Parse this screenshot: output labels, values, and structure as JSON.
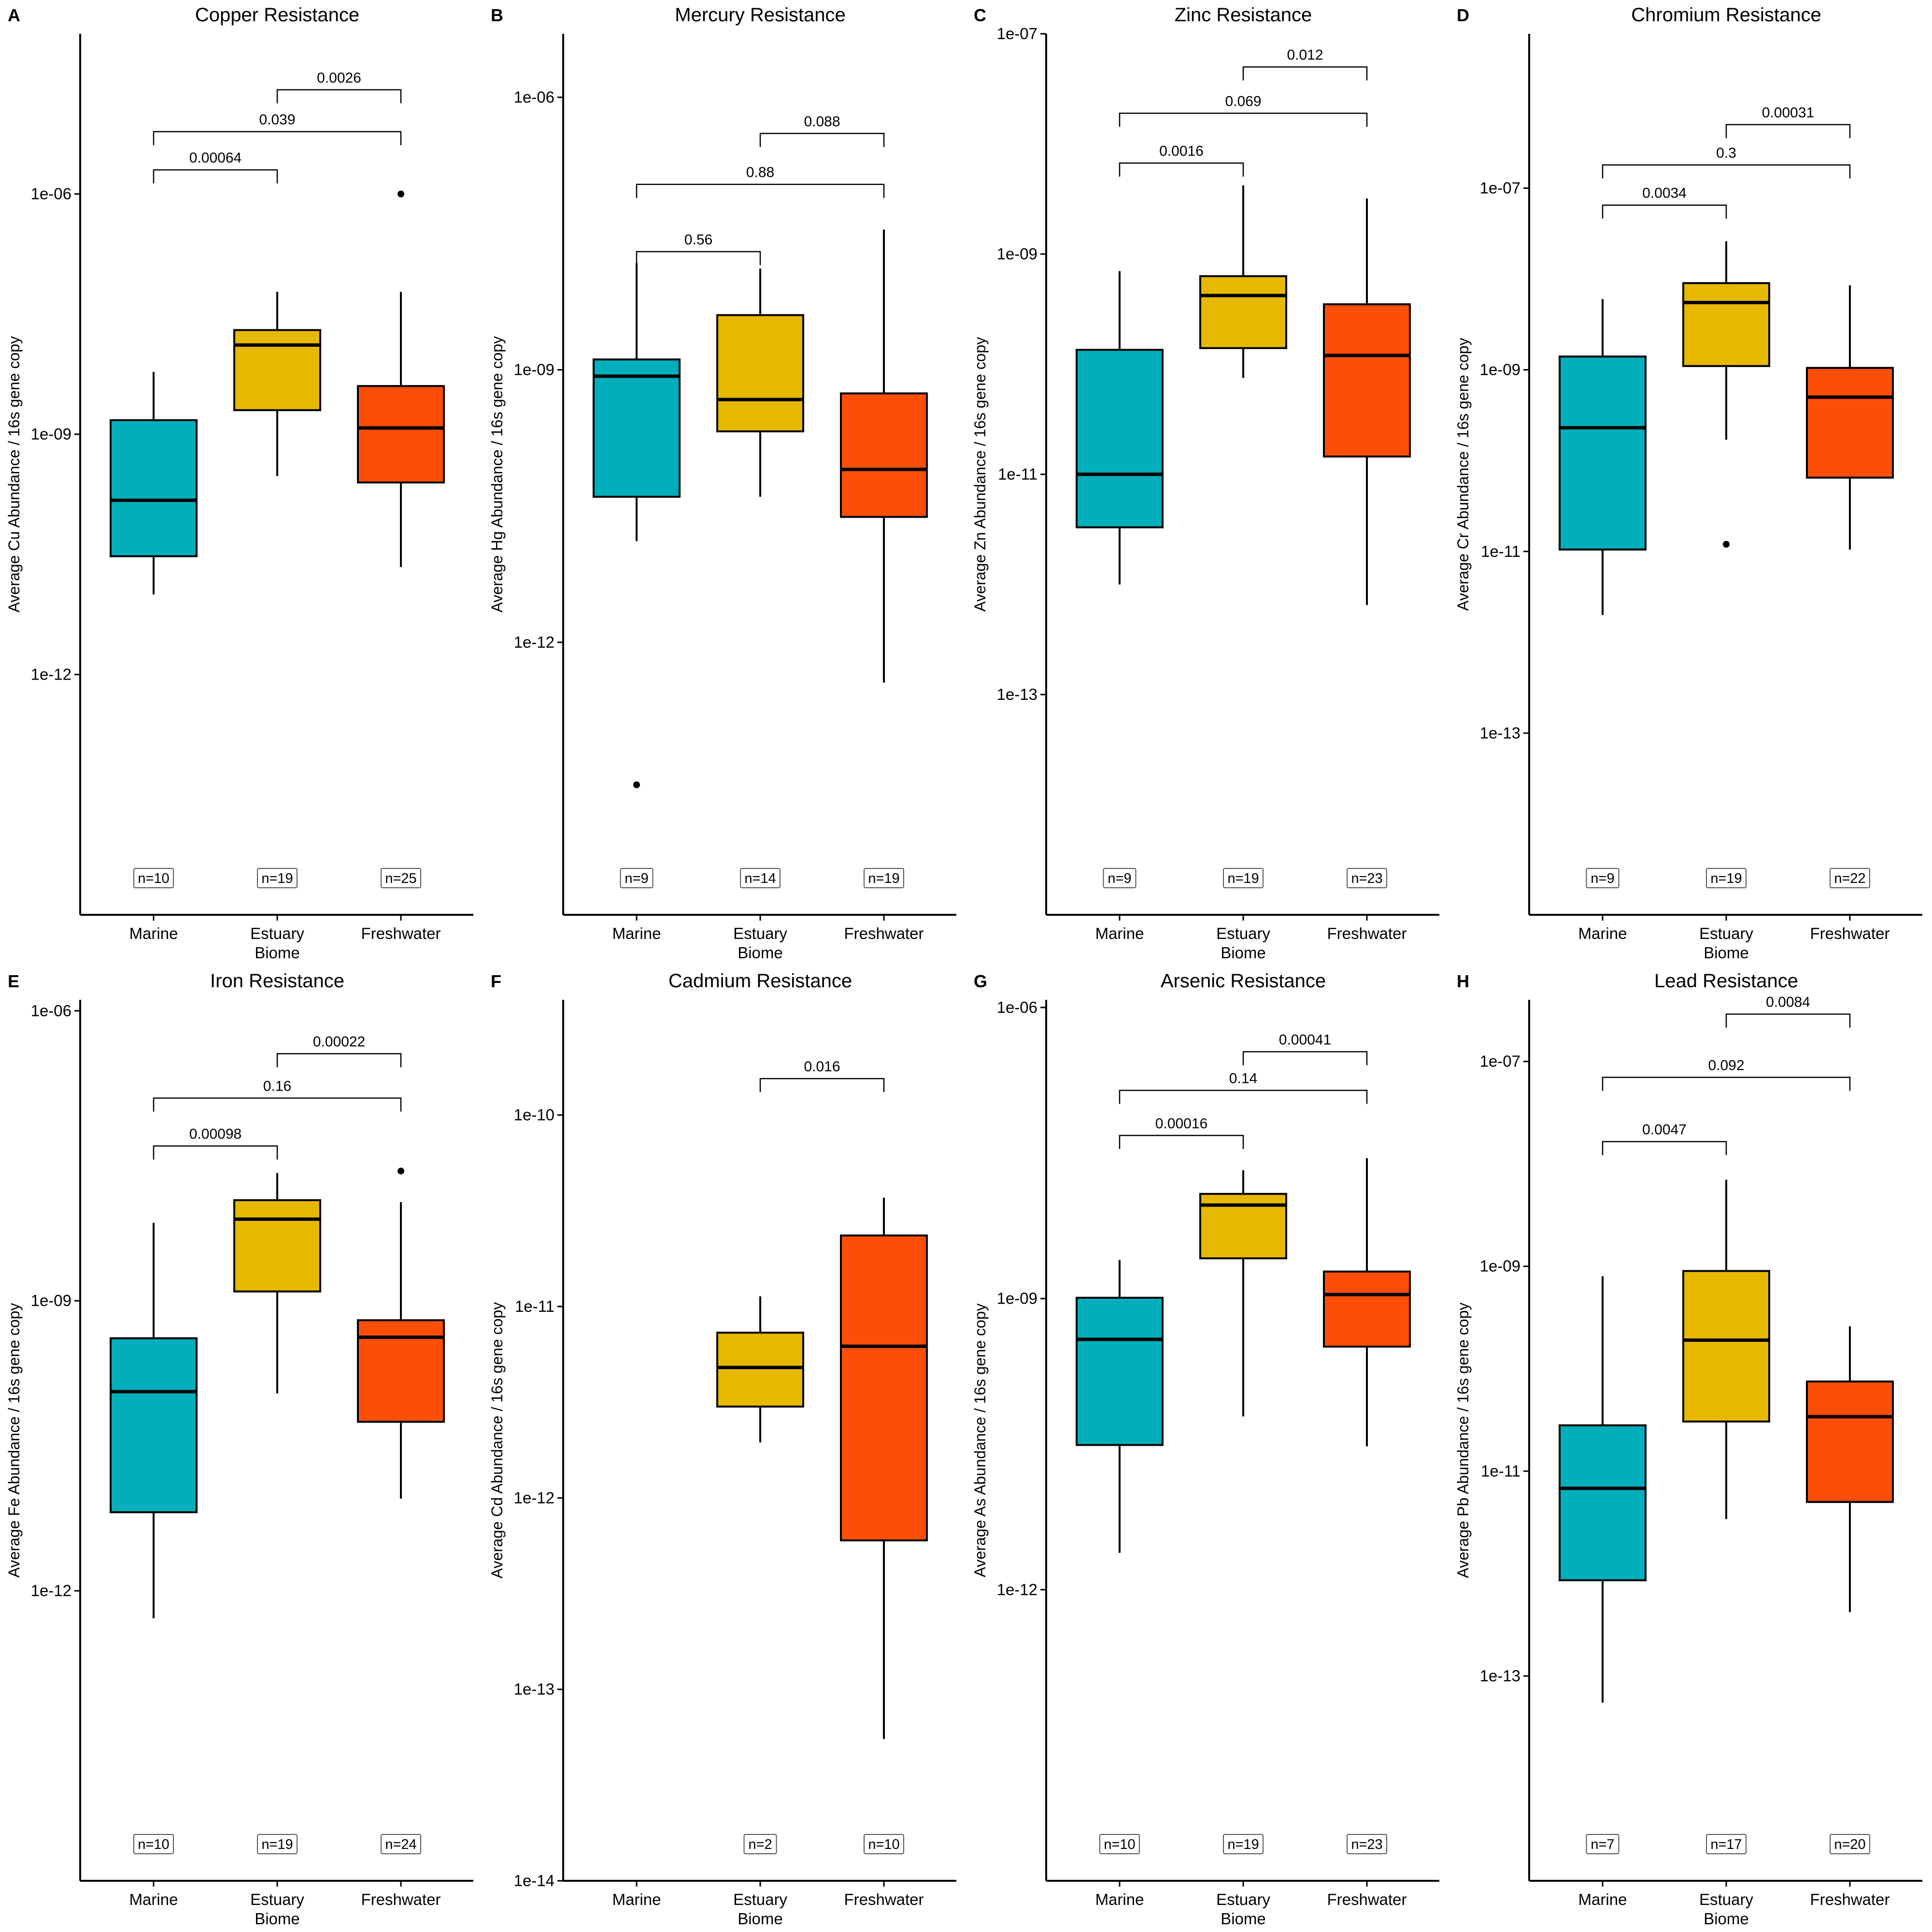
{
  "chart_data": [
    {
      "type": "box",
      "letter": "A",
      "title": "Copper Resistance",
      "ylabel": "Average Cu Abundance / 16s gene copy",
      "xlabel": "Biome",
      "yscale": "log10",
      "ylim": [
        1e-15,
        0.0001
      ],
      "yticks": [
        {
          "v": 1e-06,
          "label": "1e-06"
        },
        {
          "v": 1e-09,
          "label": "1e-09"
        },
        {
          "v": 1e-12,
          "label": "1e-12"
        }
      ],
      "categories": [
        "Marine",
        "Estuary",
        "Freshwater"
      ],
      "boxes": [
        {
          "name": "Marine",
          "min": 1e-11,
          "q1": 3e-11,
          "median": 1.5e-10,
          "q3": 1.5e-09,
          "max": 6e-09,
          "outliers": [],
          "n": "n=10"
        },
        {
          "name": "Estuary",
          "min": 3e-10,
          "q1": 2e-09,
          "median": 1.3e-08,
          "q3": 2e-08,
          "max": 6e-08,
          "outliers": [],
          "n": "n=19"
        },
        {
          "name": "Freshwater",
          "min": 2.2e-11,
          "q1": 2.5e-10,
          "median": 1.2e-09,
          "q3": 4e-09,
          "max": 6e-08,
          "outliers": [
            1e-06
          ],
          "n": "n=25"
        }
      ],
      "comparisons": [
        {
          "from": 1,
          "to": 2,
          "y": 2e-05,
          "label": "0.0026"
        },
        {
          "from": 0,
          "to": 2,
          "y": 6e-06,
          "label": "0.039"
        },
        {
          "from": 0,
          "to": 1,
          "y": 2e-06,
          "label": "0.00064"
        }
      ]
    },
    {
      "type": "box",
      "letter": "B",
      "title": "Mercury Resistance",
      "ylabel": "Average Hg Abundance / 16s gene copy",
      "xlabel": "Biome",
      "yscale": "log10",
      "ylim": [
        1e-15,
        5e-06
      ],
      "yticks": [
        {
          "v": 1e-06,
          "label": "1e-06"
        },
        {
          "v": 1e-09,
          "label": "1e-09"
        },
        {
          "v": 1e-12,
          "label": "1e-12"
        }
      ],
      "categories": [
        "Marine",
        "Estuary",
        "Freshwater"
      ],
      "boxes": [
        {
          "name": "Marine",
          "min": 1.3e-11,
          "q1": 4e-11,
          "median": 8.5e-10,
          "q3": 1.3e-09,
          "max": 1.5e-08,
          "outliers": [
            2.7e-14
          ],
          "n": "n=9"
        },
        {
          "name": "Estuary",
          "min": 4e-11,
          "q1": 2.1e-10,
          "median": 4.7e-10,
          "q3": 4e-09,
          "max": 1.3e-08,
          "outliers": [],
          "n": "n=14"
        },
        {
          "name": "Freshwater",
          "min": 3.6e-13,
          "q1": 2.4e-11,
          "median": 8e-11,
          "q3": 5.5e-10,
          "max": 3.5e-08,
          "outliers": [],
          "n": "n=19"
        }
      ],
      "comparisons": [
        {
          "from": 1,
          "to": 2,
          "y": 4e-07,
          "label": "0.088"
        },
        {
          "from": 0,
          "to": 2,
          "y": 1.1e-07,
          "label": "0.88"
        },
        {
          "from": 0,
          "to": 1,
          "y": 2e-08,
          "label": "0.56"
        }
      ]
    },
    {
      "type": "box",
      "letter": "C",
      "title": "Zinc Resistance",
      "ylabel": "Average Zn Abundance / 16s gene copy",
      "xlabel": "Biome",
      "yscale": "log10",
      "ylim": [
        1e-15,
        1e-07
      ],
      "yticks": [
        {
          "v": 1e-07,
          "label": "1e-07"
        },
        {
          "v": 1e-09,
          "label": "1e-09"
        },
        {
          "v": 1e-11,
          "label": "1e-11"
        },
        {
          "v": 1e-13,
          "label": "1e-13"
        }
      ],
      "categories": [
        "Marine",
        "Estuary",
        "Freshwater"
      ],
      "boxes": [
        {
          "name": "Marine",
          "min": 1e-12,
          "q1": 3.3e-12,
          "median": 1e-11,
          "q3": 1.35e-10,
          "max": 7e-10,
          "outliers": [],
          "n": "n=9"
        },
        {
          "name": "Estuary",
          "min": 7.5e-11,
          "q1": 1.4e-10,
          "median": 4.2e-10,
          "q3": 6.3e-10,
          "max": 4.2e-09,
          "outliers": [],
          "n": "n=19"
        },
        {
          "name": "Freshwater",
          "min": 6.5e-13,
          "q1": 1.45e-11,
          "median": 1.2e-10,
          "q3": 3.5e-10,
          "max": 3.2e-09,
          "outliers": [],
          "n": "n=23"
        }
      ],
      "comparisons": [
        {
          "from": 1,
          "to": 2,
          "y": 5e-08,
          "label": "0.012"
        },
        {
          "from": 0,
          "to": 2,
          "y": 1.9e-08,
          "label": "0.069"
        },
        {
          "from": 0,
          "to": 1,
          "y": 6.7e-09,
          "label": "0.0016"
        }
      ]
    },
    {
      "type": "box",
      "letter": "D",
      "title": "Chromium Resistance",
      "ylabel": "Average Cr Abundance / 16s gene copy",
      "xlabel": "Biome",
      "yscale": "log10",
      "ylim": [
        1e-15,
        5e-06
      ],
      "yticks": [
        {
          "v": 1e-07,
          "label": "1e-07"
        },
        {
          "v": 1e-09,
          "label": "1e-09"
        },
        {
          "v": 1e-11,
          "label": "1e-11"
        },
        {
          "v": 1e-13,
          "label": "1e-13"
        }
      ],
      "categories": [
        "Marine",
        "Estuary",
        "Freshwater"
      ],
      "boxes": [
        {
          "name": "Marine",
          "min": 2e-12,
          "q1": 1.05e-11,
          "median": 2.3e-10,
          "q3": 1.4e-09,
          "max": 6e-09,
          "outliers": [],
          "n": "n=9"
        },
        {
          "name": "Estuary",
          "min": 1.7e-10,
          "q1": 1.1e-09,
          "median": 5.5e-09,
          "q3": 9e-09,
          "max": 2.6e-08,
          "outliers": [
            1.2e-11
          ],
          "n": "n=19"
        },
        {
          "name": "Freshwater",
          "min": 1.05e-11,
          "q1": 6.5e-11,
          "median": 5e-10,
          "q3": 1.05e-09,
          "max": 8.5e-09,
          "outliers": [],
          "n": "n=22"
        }
      ],
      "comparisons": [
        {
          "from": 1,
          "to": 2,
          "y": 5e-07,
          "label": "0.00031"
        },
        {
          "from": 0,
          "to": 2,
          "y": 1.8e-07,
          "label": "0.3"
        },
        {
          "from": 0,
          "to": 1,
          "y": 6.5e-08,
          "label": "0.0034"
        }
      ]
    },
    {
      "type": "box",
      "letter": "E",
      "title": "Iron Resistance",
      "ylabel": "Average Fe Abundance / 16s gene copy",
      "xlabel": "Biome",
      "yscale": "log10",
      "ylim": [
        1e-15,
        1.3e-06
      ],
      "yticks": [
        {
          "v": 1e-06,
          "label": "1e-06"
        },
        {
          "v": 1e-09,
          "label": "1e-09"
        },
        {
          "v": 1e-12,
          "label": "1e-12"
        }
      ],
      "categories": [
        "Marine",
        "Estuary",
        "Freshwater"
      ],
      "boxes": [
        {
          "name": "Marine",
          "min": 5.2e-13,
          "q1": 6.5e-12,
          "median": 1.15e-10,
          "q3": 4.1e-10,
          "max": 6.4e-09,
          "outliers": [],
          "n": "n=10"
        },
        {
          "name": "Estuary",
          "min": 1.1e-10,
          "q1": 1.25e-09,
          "median": 7e-09,
          "q3": 1.1e-08,
          "max": 2.1e-08,
          "outliers": [],
          "n": "n=19"
        },
        {
          "name": "Freshwater",
          "min": 9e-12,
          "q1": 5.6e-11,
          "median": 4.2e-10,
          "q3": 6.3e-10,
          "max": 1.05e-08,
          "outliers": [
            2.2e-08
          ],
          "n": "n=24"
        }
      ],
      "comparisons": [
        {
          "from": 1,
          "to": 2,
          "y": 3.6e-07,
          "label": "0.00022"
        },
        {
          "from": 0,
          "to": 2,
          "y": 1.25e-07,
          "label": "0.16"
        },
        {
          "from": 0,
          "to": 1,
          "y": 4e-08,
          "label": "0.00098"
        }
      ]
    },
    {
      "type": "box",
      "letter": "F",
      "title": "Cadmium Resistance",
      "ylabel": "Average Cd Abundance / 16s gene copy",
      "xlabel": "Biome",
      "yscale": "log10",
      "ylim": [
        1e-14,
        4e-10
      ],
      "yticks": [
        {
          "v": 1e-10,
          "label": "1e-10"
        },
        {
          "v": 1e-11,
          "label": "1e-11"
        },
        {
          "v": 1e-12,
          "label": "1e-12"
        },
        {
          "v": 1e-13,
          "label": "1e-13"
        },
        {
          "v": 1e-14,
          "label": "1e-14"
        }
      ],
      "categories": [
        "Marine",
        "Estuary",
        "Freshwater"
      ],
      "boxes": [
        {
          "name": "Marine",
          "empty": true,
          "n": ""
        },
        {
          "name": "Estuary",
          "min": 1.95e-12,
          "q1": 3e-12,
          "median": 4.8e-12,
          "q3": 7.3e-12,
          "max": 1.13e-11,
          "outliers": [],
          "n": "n=2"
        },
        {
          "name": "Freshwater",
          "min": 5.5e-14,
          "q1": 6e-13,
          "median": 6.2e-12,
          "q3": 2.35e-11,
          "max": 3.7e-11,
          "outliers": [],
          "n": "n=10"
        }
      ],
      "comparisons": [
        {
          "from": 1,
          "to": 2,
          "y": 1.55e-10,
          "label": "0.016"
        }
      ]
    },
    {
      "type": "box",
      "letter": "G",
      "title": "Arsenic Resistance",
      "ylabel": "Average As Abundance / 16s gene copy",
      "xlabel": "Biome",
      "yscale": "log10",
      "ylim": [
        1e-15,
        1.2e-06
      ],
      "yticks": [
        {
          "v": 1e-06,
          "label": "1e-06"
        },
        {
          "v": 1e-09,
          "label": "1e-09"
        },
        {
          "v": 1e-12,
          "label": "1e-12"
        }
      ],
      "categories": [
        "Marine",
        "Estuary",
        "Freshwater"
      ],
      "boxes": [
        {
          "name": "Marine",
          "min": 2.4e-12,
          "q1": 3.1e-11,
          "median": 3.8e-10,
          "q3": 1.02e-09,
          "max": 2.5e-09,
          "outliers": [],
          "n": "n=10"
        },
        {
          "name": "Estuary",
          "min": 6.1e-11,
          "q1": 2.6e-09,
          "median": 9.2e-09,
          "q3": 1.2e-08,
          "max": 2.1e-08,
          "outliers": [],
          "n": "n=19"
        },
        {
          "name": "Freshwater",
          "min": 3e-11,
          "q1": 3.2e-10,
          "median": 1.1e-09,
          "q3": 1.9e-09,
          "max": 2.8e-08,
          "outliers": [],
          "n": "n=23"
        }
      ],
      "comparisons": [
        {
          "from": 1,
          "to": 2,
          "y": 3.5e-07,
          "label": "0.00041"
        },
        {
          "from": 0,
          "to": 2,
          "y": 1.4e-07,
          "label": "0.14"
        },
        {
          "from": 0,
          "to": 1,
          "y": 4.8e-08,
          "label": "0.00016"
        }
      ]
    },
    {
      "type": "box",
      "letter": "H",
      "title": "Lead Resistance",
      "ylabel": "Average Pb Abundance / 16s gene copy",
      "xlabel": "Biome",
      "yscale": "log10",
      "ylim": [
        1e-15,
        4e-07
      ],
      "yticks": [
        {
          "v": 1e-07,
          "label": "1e-07"
        },
        {
          "v": 1e-09,
          "label": "1e-09"
        },
        {
          "v": 1e-11,
          "label": "1e-11"
        },
        {
          "v": 1e-13,
          "label": "1e-13"
        }
      ],
      "categories": [
        "Marine",
        "Estuary",
        "Freshwater"
      ],
      "boxes": [
        {
          "name": "Marine",
          "min": 5.5e-14,
          "q1": 8.6e-13,
          "median": 6.8e-12,
          "q3": 2.8e-11,
          "max": 8e-10,
          "outliers": [],
          "n": "n=7"
        },
        {
          "name": "Estuary",
          "min": 3.4e-12,
          "q1": 3.05e-11,
          "median": 1.9e-10,
          "q3": 9e-10,
          "max": 7e-09,
          "outliers": [],
          "n": "n=17"
        },
        {
          "name": "Freshwater",
          "min": 4.2e-13,
          "q1": 5e-12,
          "median": 3.4e-11,
          "q3": 7.5e-11,
          "max": 2.6e-10,
          "outliers": [],
          "n": "n=20"
        }
      ],
      "comparisons": [
        {
          "from": 1,
          "to": 2,
          "y": 2.9e-07,
          "label": "0.0084"
        },
        {
          "from": 0,
          "to": 2,
          "y": 7e-08,
          "label": "0.092"
        },
        {
          "from": 0,
          "to": 1,
          "y": 1.65e-08,
          "label": "0.0047"
        }
      ]
    }
  ],
  "colors": {
    "Marine": "#00AFBB",
    "Estuary": "#E7B800",
    "Freshwater": "#FC4E07",
    "line": "#000000"
  }
}
